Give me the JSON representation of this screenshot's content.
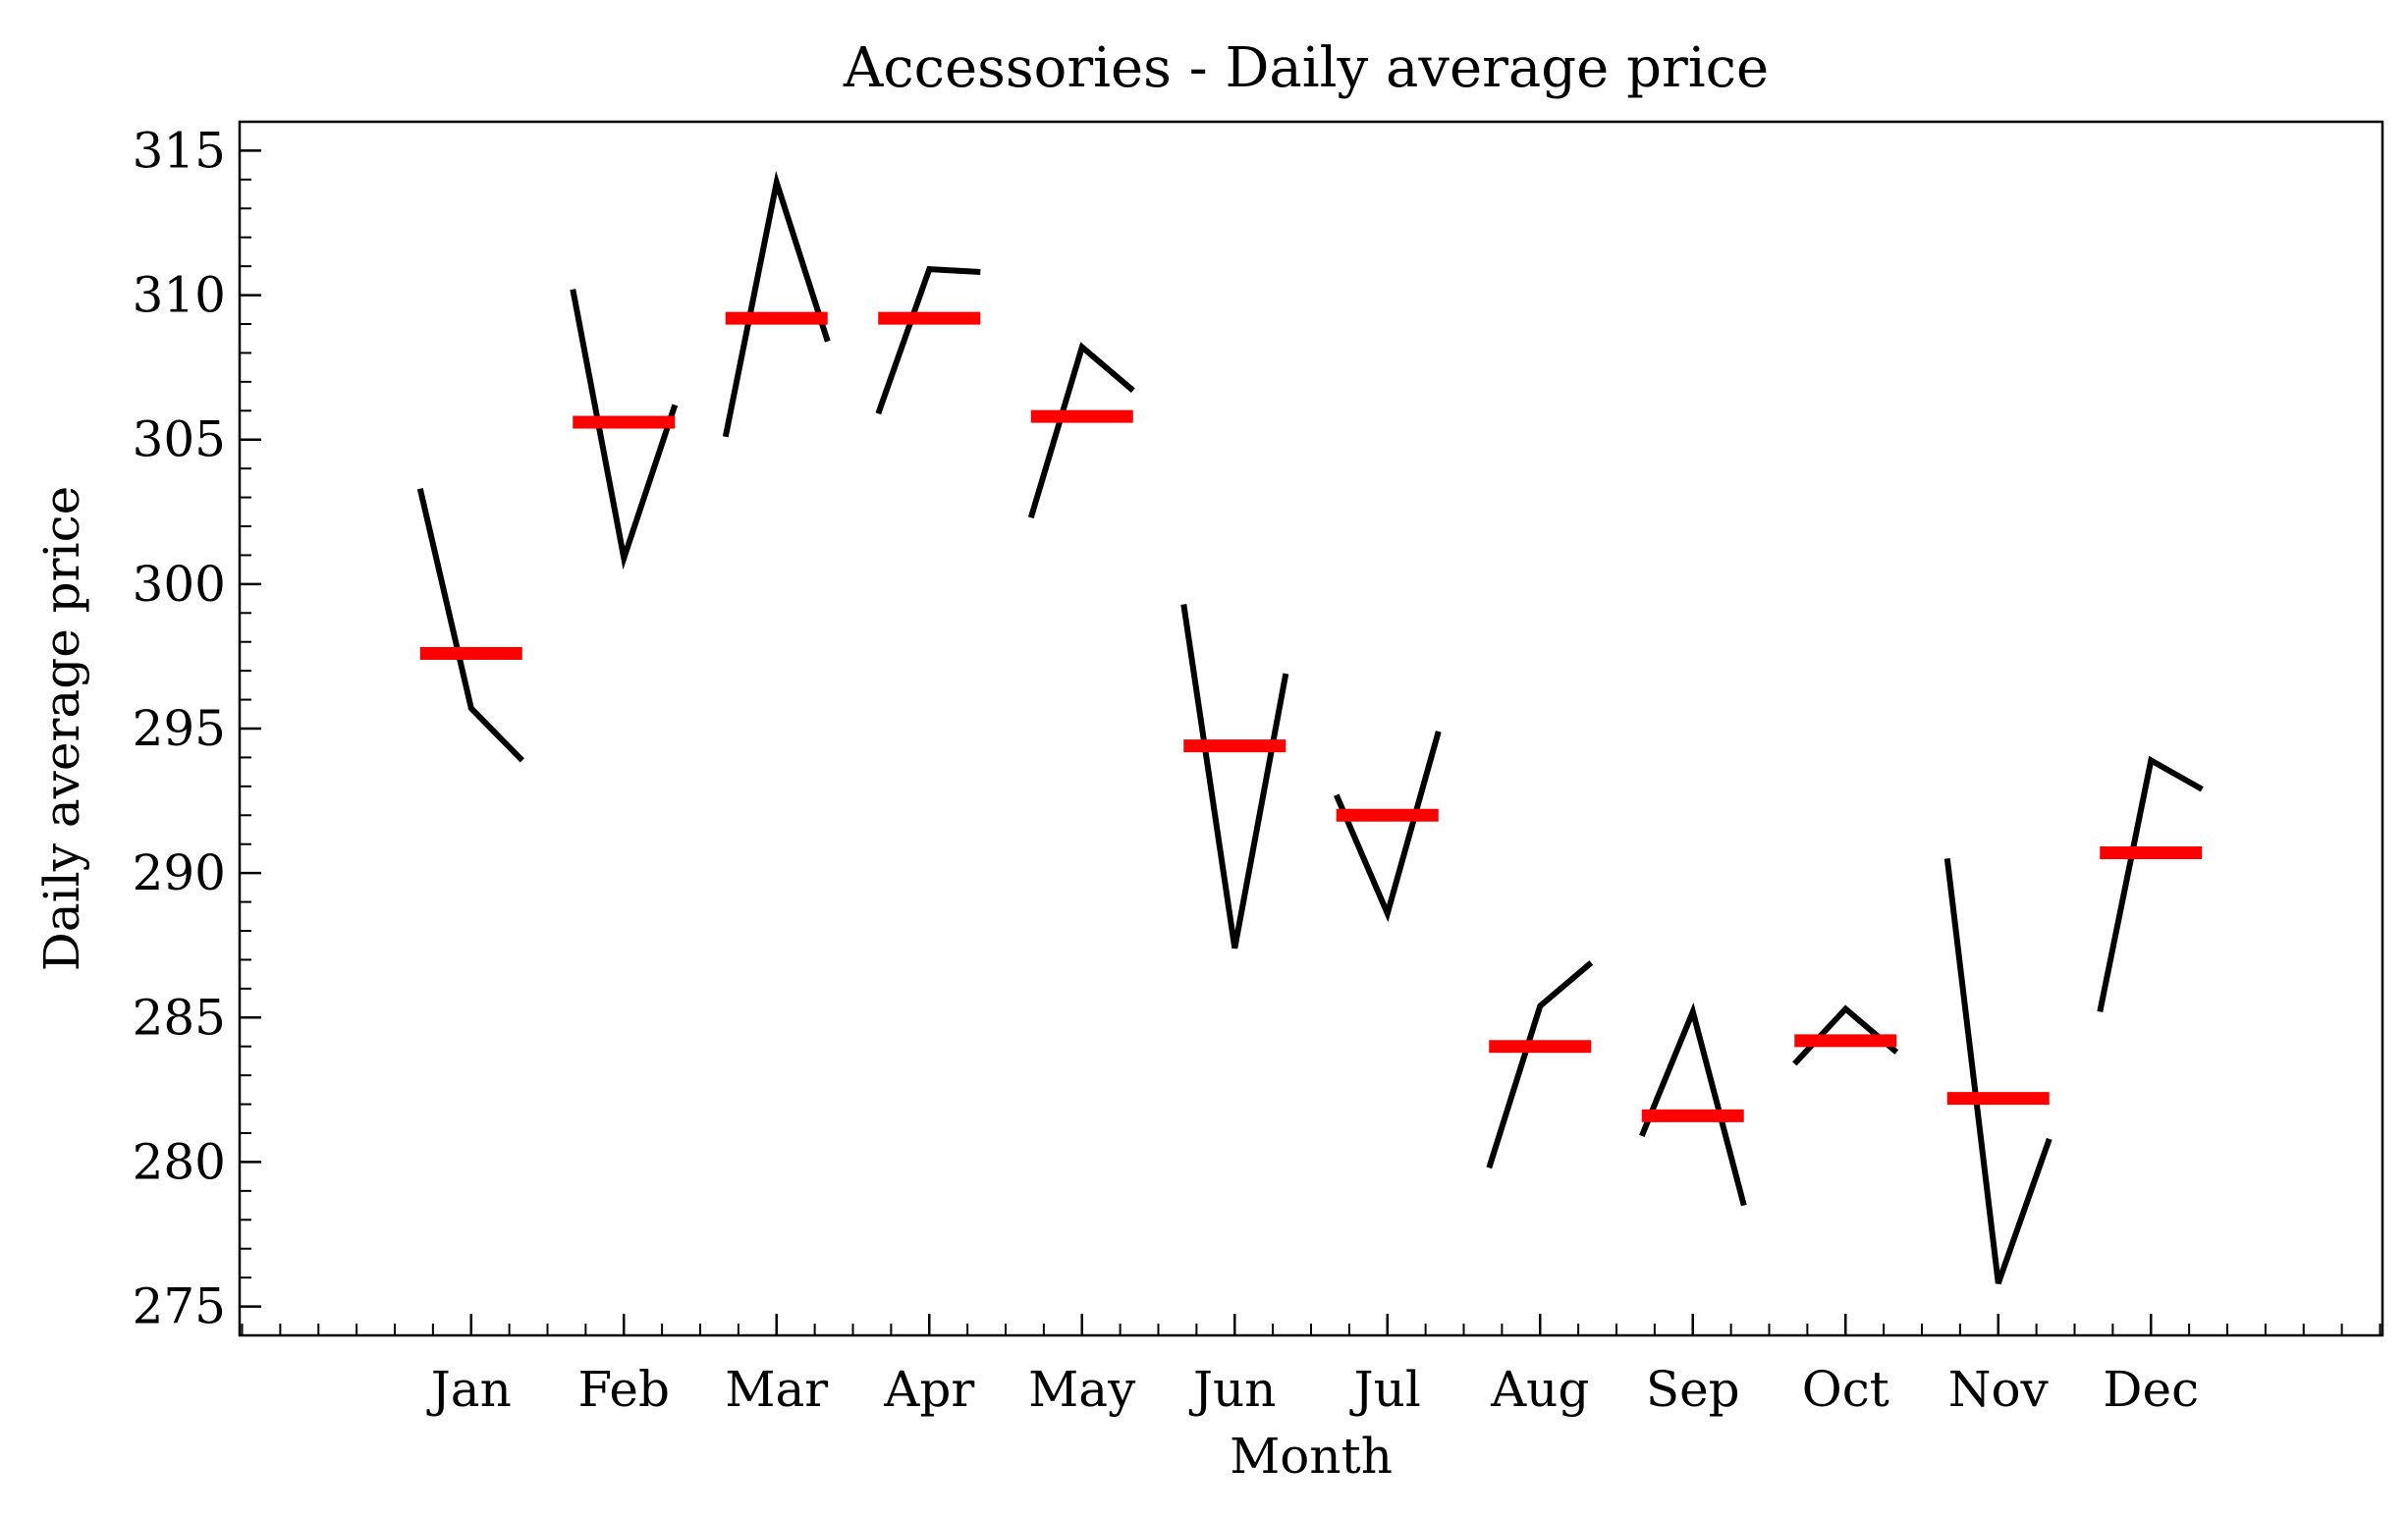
{
  "chart_data": {
    "type": "line",
    "title": "Accessories - Daily average price",
    "xlabel": "Month",
    "ylabel": "Daily average price",
    "categories": [
      "Jan",
      "Feb",
      "Mar",
      "Apr",
      "May",
      "Jun",
      "Jul",
      "Aug",
      "Sep",
      "Oct",
      "Nov",
      "Dec"
    ],
    "ylim": [
      274,
      316
    ],
    "yticks": [
      275,
      280,
      285,
      290,
      295,
      300,
      305,
      310,
      315
    ],
    "grid": false,
    "legend": "none",
    "series": [
      {
        "values": [
          [
            303.3,
            295.7,
            293.9
          ],
          [
            310.2,
            300.9,
            306.2
          ],
          [
            305.1,
            313.9,
            308.4
          ],
          [
            305.9,
            310.9,
            310.8
          ],
          [
            302.3,
            308.2,
            306.7
          ],
          [
            299.3,
            287.4,
            296.9
          ],
          [
            292.7,
            288.6,
            294.9
          ],
          [
            279.8,
            285.4,
            286.9
          ],
          [
            280.9,
            285.2,
            278.5
          ],
          [
            283.4,
            285.3,
            283.8
          ],
          [
            290.5,
            275.8,
            280.8
          ],
          [
            285.2,
            293.9,
            292.9
          ]
        ],
        "color": "#000000"
      },
      {
        "values": [
          297.6,
          305.6,
          309.2,
          309.2,
          305.8,
          294.4,
          292.0,
          284.0,
          281.6,
          284.2,
          282.2,
          290.7
        ],
        "color": "#ff0000"
      }
    ]
  }
}
